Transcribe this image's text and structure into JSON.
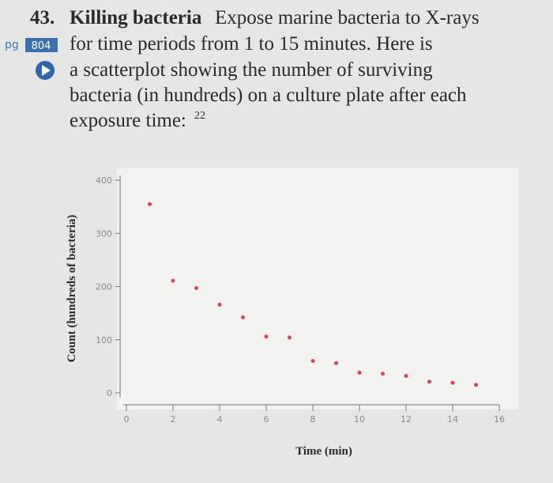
{
  "problem": {
    "number": "43.",
    "title": "Killing bacteria",
    "page_ref": [
      "pg",
      "804"
    ],
    "lines": [
      "Expose marine bacteria to X-rays",
      "for time periods from 1 to 15 minutes. Here is",
      "a scatterplot showing the number of surviving",
      "bacteria (in hundreds) on a culture plate after each",
      "exposure time:"
    ],
    "footnote": "22"
  },
  "chart_data": {
    "type": "scatter",
    "x_label": "Time (min)",
    "y_label": "Count (hundreds of bacteria)",
    "x": [
      1,
      2,
      3,
      4,
      5,
      6,
      7,
      8,
      9,
      10,
      11,
      12,
      13,
      14,
      15
    ],
    "series": [
      {
        "color": "#d9435a",
        "values": [
          355,
          211,
          197,
          166,
          142,
          106,
          104,
          60,
          56,
          38,
          36,
          32,
          21,
          19,
          15
        ]
      }
    ],
    "xlim": [
      0,
      16
    ],
    "ylim": [
      0,
      400
    ],
    "xticks": [
      0,
      2,
      4,
      6,
      8,
      10,
      12,
      14,
      16
    ],
    "yticks": [
      0,
      100,
      200,
      300,
      400
    ]
  }
}
